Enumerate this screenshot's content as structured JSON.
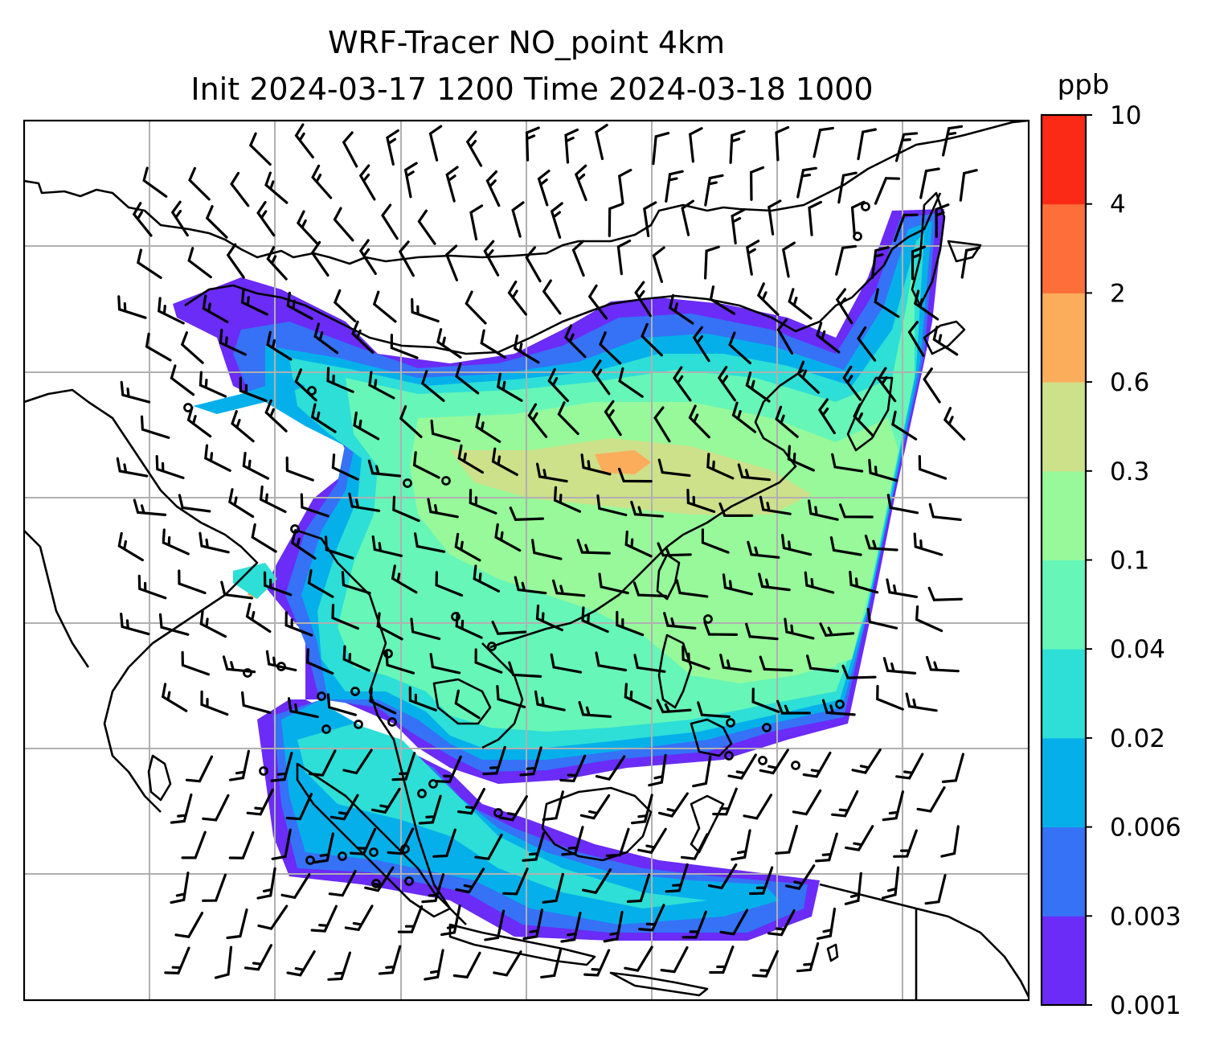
{
  "title": {
    "line1": "WRF-Tracer NO_point 4km",
    "line2": "Init 2024-03-17 1200 Time 2024-03-18 1000"
  },
  "colorbar": {
    "unit": "ppb",
    "levels": [
      "0.001",
      "0.003",
      "0.006",
      "0.02",
      "0.04",
      "0.1",
      "0.3",
      "0.6",
      "2",
      "4",
      "10"
    ],
    "colors": [
      "#6a2cf6",
      "#3572f6",
      "#05b0ea",
      "#2ddfd6",
      "#66f6b8",
      "#97f99a",
      "#cde08a",
      "#fcad5c",
      "#fe6e3a",
      "#fb2a16"
    ]
  },
  "map": {
    "coastline_color": "#000000",
    "gridline_color": "#b0b0b0",
    "barb_color": "#000000"
  }
}
